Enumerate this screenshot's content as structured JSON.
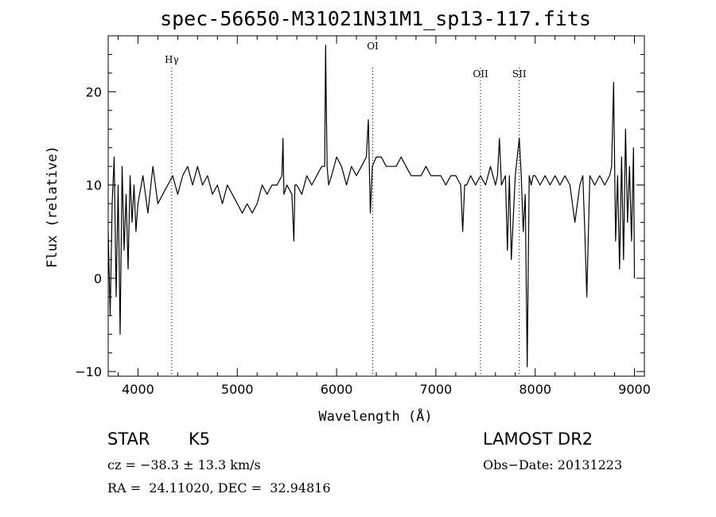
{
  "chart_data": {
    "type": "line",
    "title": "spec-56650-M31021N31M1_sp13-117.fits",
    "xlabel": "Wavelength (Å)",
    "ylabel": "Flux (relative)",
    "xlim": [
      3700,
      9100
    ],
    "ylim": [
      -10.5,
      26
    ],
    "x_ticks": [
      4000,
      5000,
      6000,
      7000,
      8000,
      9000
    ],
    "x_tick_labels": [
      "4000",
      "5000",
      "6000",
      "7000",
      "8000",
      "9000"
    ],
    "y_ticks": [
      -10,
      0,
      10,
      20
    ],
    "y_tick_labels": [
      "−10",
      "0",
      "10",
      "20"
    ],
    "grid": false,
    "line_markers": [
      {
        "label": "Hγ",
        "x": 4340
      },
      {
        "label": "OI",
        "x": 6364
      },
      {
        "label": "OII",
        "x": 7450
      },
      {
        "label": "SII",
        "x": 7840
      }
    ],
    "series": [
      {
        "x": [
          3700,
          3720,
          3740,
          3760,
          3780,
          3800,
          3820,
          3840,
          3860,
          3880,
          3900,
          3920,
          3940,
          3960,
          3980,
          4000,
          4050,
          4100,
          4150,
          4200,
          4250,
          4300,
          4350,
          4400,
          4450,
          4500,
          4550,
          4600,
          4650,
          4700,
          4750,
          4800,
          4850,
          4900,
          4950,
          5000,
          5050,
          5100,
          5150,
          5200,
          5250,
          5300,
          5350,
          5400,
          5450,
          5460,
          5470,
          5500,
          5550,
          5570,
          5580,
          5600,
          5650,
          5700,
          5750,
          5800,
          5850,
          5880,
          5890,
          5896,
          5905,
          5920,
          5950,
          6000,
          6050,
          6100,
          6150,
          6200,
          6250,
          6300,
          6320,
          6340,
          6360,
          6400,
          6450,
          6500,
          6550,
          6600,
          6650,
          6700,
          6750,
          6800,
          6850,
          6900,
          6950,
          7000,
          7050,
          7100,
          7150,
          7200,
          7250,
          7270,
          7290,
          7310,
          7350,
          7400,
          7450,
          7500,
          7550,
          7600,
          7620,
          7640,
          7660,
          7700,
          7720,
          7740,
          7760,
          7800,
          7840,
          7860,
          7880,
          7900,
          7920,
          7940,
          7960,
          7980,
          8000,
          8050,
          8100,
          8150,
          8200,
          8250,
          8300,
          8350,
          8400,
          8450,
          8480,
          8500,
          8520,
          8550,
          8600,
          8650,
          8700,
          8750,
          8770,
          8790,
          8810,
          8830,
          8850,
          8870,
          8890,
          8910,
          8930,
          8950,
          8970,
          8990,
          9000
        ],
        "y": [
          5,
          -4,
          8,
          13,
          -2,
          10,
          -6,
          12,
          3,
          9,
          1,
          11,
          6,
          10,
          5,
          8,
          11,
          7,
          12,
          8,
          9,
          10,
          11,
          9,
          11,
          12,
          10,
          12,
          10,
          11,
          9,
          10,
          8,
          10,
          9,
          8,
          7,
          8,
          7,
          8,
          10,
          9,
          10,
          10,
          11,
          15,
          9,
          10,
          9,
          4,
          10,
          10,
          9,
          11,
          10,
          11,
          12,
          12,
          25,
          19,
          12,
          10,
          11,
          13,
          12,
          10,
          12,
          11,
          12,
          13,
          17,
          7,
          12,
          13,
          13,
          12,
          12,
          12,
          13,
          12,
          11,
          11,
          11,
          12,
          11,
          11,
          11,
          10,
          11,
          11,
          10,
          5,
          10,
          10,
          11,
          10,
          11,
          10,
          12,
          10,
          11,
          15,
          10,
          11,
          3,
          11,
          2,
          11,
          15,
          11,
          5,
          9,
          -9.5,
          11,
          10,
          11,
          11,
          10,
          11,
          10,
          11,
          10,
          11,
          10,
          6,
          10,
          11,
          5,
          -2,
          11,
          10,
          11,
          10,
          11,
          12,
          21,
          4,
          11,
          1,
          13,
          2,
          16,
          6,
          12,
          4,
          14,
          0
        ]
      }
    ]
  },
  "info": {
    "object_class": "STAR",
    "subclass": "K5",
    "survey": "LAMOST DR2",
    "cz": "cz = −38.3 ± 13.3 km/s",
    "obs_date": "Obs−Date: 20131223",
    "coords": "RA =  24.11020, DEC =  32.94816"
  }
}
